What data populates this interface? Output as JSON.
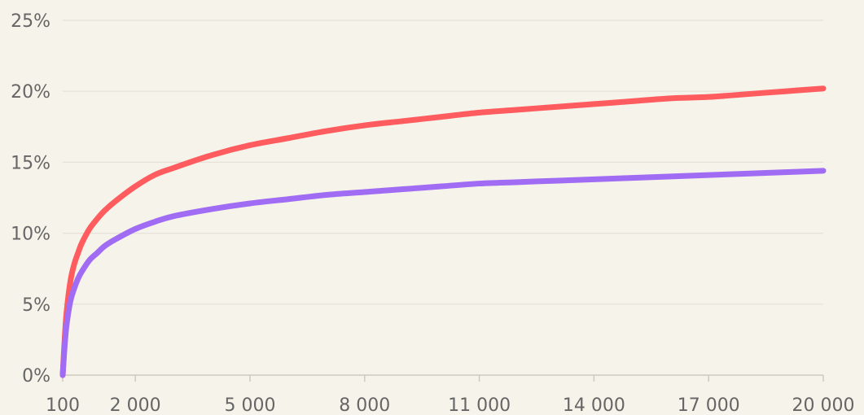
{
  "chart_data": {
    "type": "line",
    "x_ticks": [
      {
        "value": 100,
        "label": "100"
      },
      {
        "value": 2000,
        "label": "2 000"
      },
      {
        "value": 5000,
        "label": "5 000"
      },
      {
        "value": 8000,
        "label": "8 000"
      },
      {
        "value": 11000,
        "label": "11 000"
      },
      {
        "value": 14000,
        "label": "14 000"
      },
      {
        "value": 17000,
        "label": "17 000"
      },
      {
        "value": 20000,
        "label": "20 000"
      }
    ],
    "y_ticks": [
      {
        "value": 0,
        "label": "0%"
      },
      {
        "value": 5,
        "label": "5%"
      },
      {
        "value": 10,
        "label": "10%"
      },
      {
        "value": 15,
        "label": "15%"
      },
      {
        "value": 20,
        "label": "20%"
      },
      {
        "value": 25,
        "label": "25%"
      }
    ],
    "xlim": [
      100,
      20000
    ],
    "ylim": [
      0,
      25
    ],
    "grid": "horizontal",
    "series": [
      {
        "color": "#ff5c5f",
        "x": [
          100,
          150,
          200,
          300,
          400,
          500,
          600,
          800,
          1000,
          1200,
          1500,
          2000,
          2500,
          3000,
          4000,
          5000,
          6000,
          7000,
          8000,
          9000,
          10000,
          11000,
          12000,
          13000,
          14000,
          15000,
          16000,
          17000,
          18000,
          19000,
          20000
        ],
        "y": [
          0,
          2.5,
          4.4,
          6.6,
          7.8,
          8.6,
          9.3,
          10.3,
          11.0,
          11.6,
          12.3,
          13.3,
          14.1,
          14.6,
          15.5,
          16.2,
          16.7,
          17.2,
          17.6,
          17.9,
          18.2,
          18.5,
          18.7,
          18.9,
          19.1,
          19.3,
          19.5,
          19.6,
          19.8,
          20.0,
          20.2
        ]
      },
      {
        "color": "#a06cf3",
        "x": [
          100,
          150,
          200,
          300,
          400,
          500,
          600,
          800,
          1000,
          1200,
          1500,
          2000,
          2500,
          3000,
          4000,
          5000,
          6000,
          7000,
          8000,
          9000,
          10000,
          11000,
          12000,
          13000,
          14000,
          15000,
          16000,
          17000,
          18000,
          19000,
          20000
        ],
        "y": [
          0,
          2.0,
          3.5,
          5.2,
          6.1,
          6.8,
          7.3,
          8.1,
          8.6,
          9.1,
          9.6,
          10.3,
          10.8,
          11.2,
          11.7,
          12.1,
          12.4,
          12.7,
          12.9,
          13.1,
          13.3,
          13.5,
          13.6,
          13.7,
          13.8,
          13.9,
          14.0,
          14.1,
          14.2,
          14.3,
          14.4
        ]
      }
    ]
  }
}
